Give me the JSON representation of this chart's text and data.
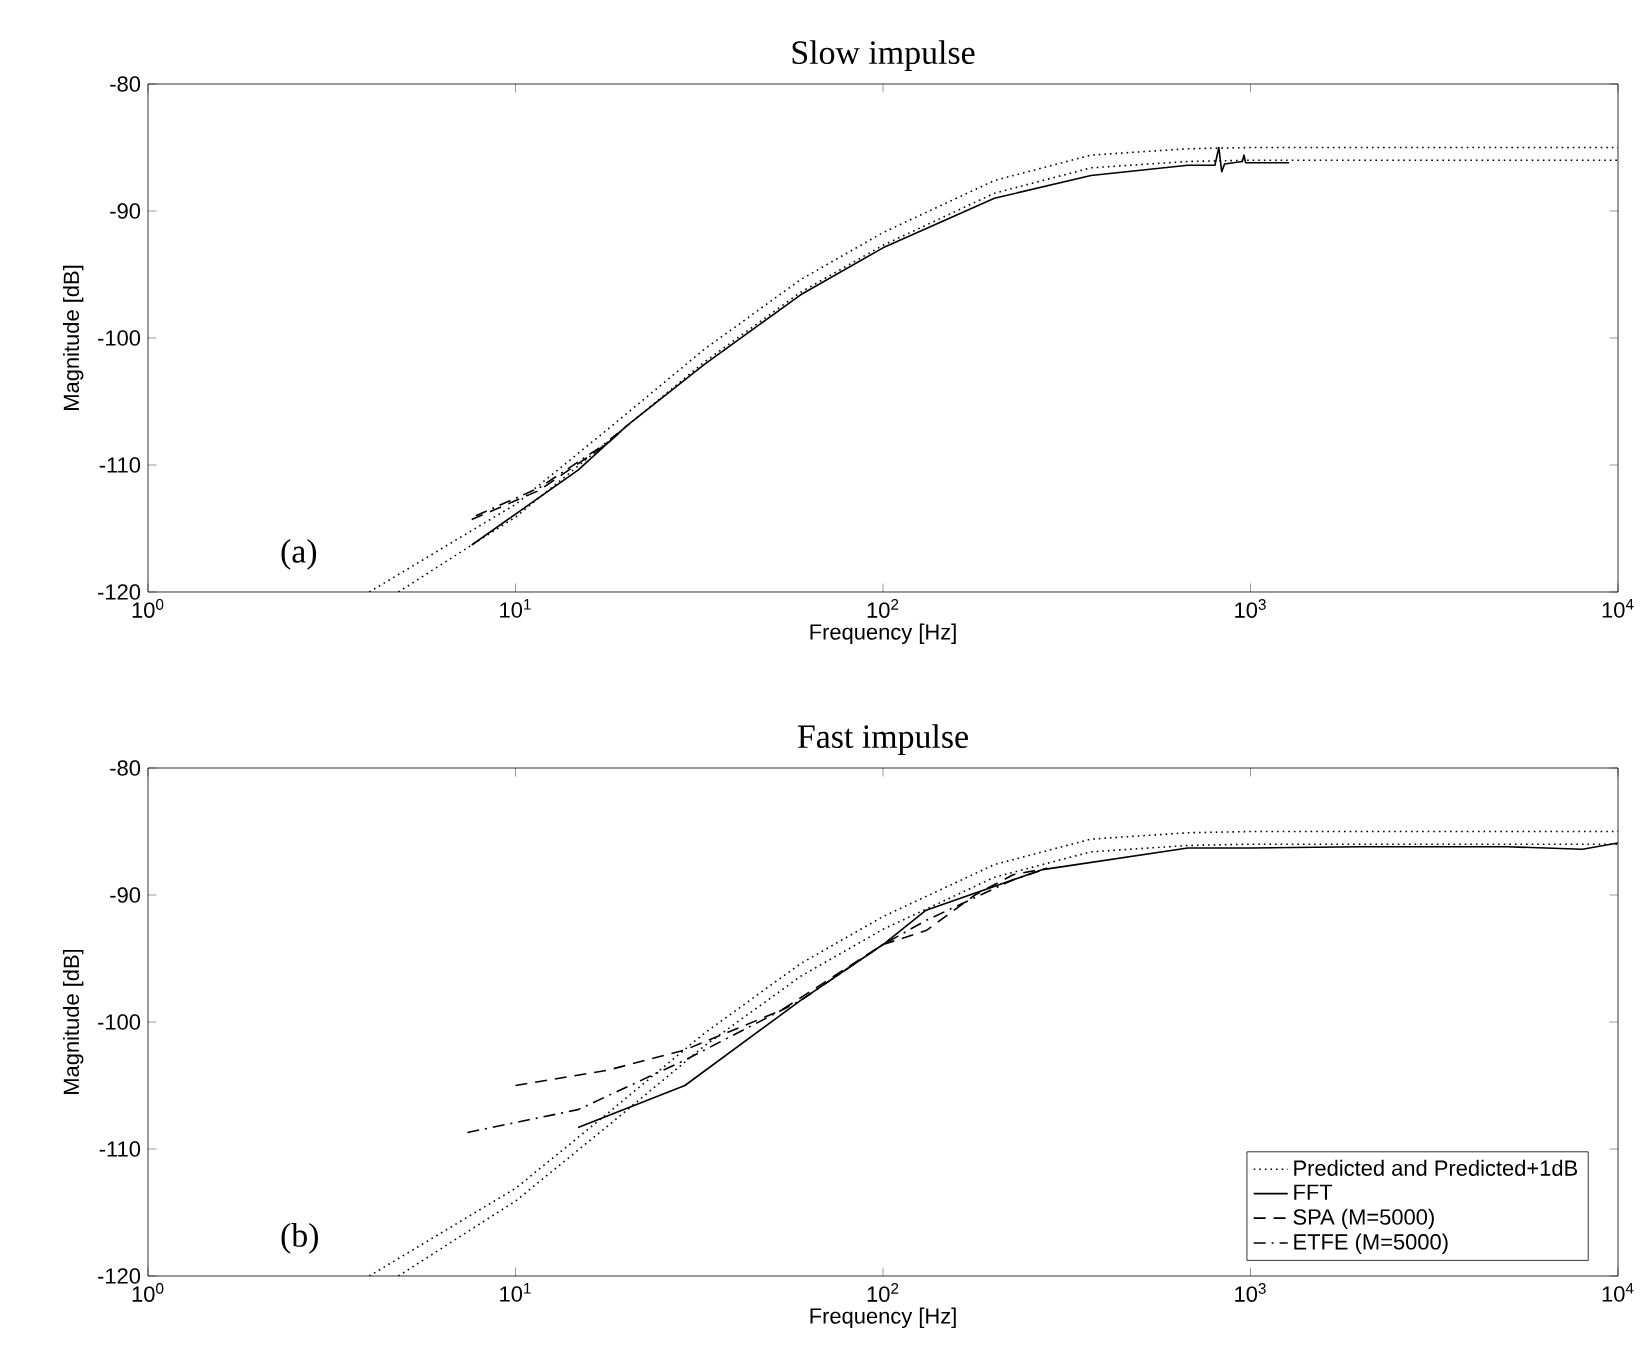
{
  "chart_data": [
    {
      "type": "line",
      "title": "Slow impulse",
      "xlabel": "Frequency [Hz]",
      "ylabel": "Magnitude [dB]",
      "annotations": [
        "(a)"
      ],
      "log": "x",
      "legend": false,
      "xlim": [
        1,
        10000
      ],
      "ylim": [
        -120,
        -80
      ],
      "xticks": [
        {
          "value": 1,
          "label": "10$^{0}$"
        },
        {
          "value": 10,
          "label": "10$^{1}$"
        },
        {
          "value": 100,
          "label": "10$^{2}$"
        },
        {
          "value": 1000,
          "label": "10$^{3}$"
        },
        {
          "value": 10000,
          "label": "10$^{4}$"
        }
      ],
      "yticks": [
        -120,
        -110,
        -100,
        -90,
        -80
      ],
      "series": [
        {
          "color": "#000000",
          "line_style": "dotted",
          "x": [
            4.0,
            10,
            17.8,
            32.6,
            59.7,
            100,
            201,
            368,
            675,
            1000,
            10000
          ],
          "values": [
            -120,
            -113.1,
            -107.2,
            -100.9,
            -95.4,
            -91.7,
            -87.6,
            -85.6,
            -85.1,
            -85.0,
            -85.0
          ]
        },
        {
          "color": "#000000",
          "line_style": "dotted",
          "x": [
            4.8,
            10,
            17.8,
            32.6,
            59.7,
            100,
            201,
            368,
            675,
            1000,
            10000
          ],
          "values": [
            -120,
            -114.1,
            -108.2,
            -101.9,
            -96.4,
            -92.7,
            -88.6,
            -86.6,
            -86.1,
            -86.0,
            -86.0
          ]
        },
        {
          "color": "#000000",
          "line_style": "solid",
          "x": [
            7.6,
            14.8,
            20.1,
            32.6,
            59.7,
            100,
            201,
            368,
            675,
            800,
            820,
            835,
            850,
            950,
            960,
            970,
            1274
          ],
          "values": [
            -116.3,
            -110.4,
            -106.9,
            -102.1,
            -96.6,
            -92.9,
            -89.0,
            -87.2,
            -86.4,
            -86.4,
            -85.0,
            -86.9,
            -86.3,
            -86.1,
            -85.6,
            -86.2,
            -86.2
          ]
        },
        {
          "color": "#000000",
          "line_style": "dashed",
          "x": [
            7.6,
            11.6,
            17.8,
            20.1
          ],
          "values": [
            -114.3,
            -112.0,
            -108.3,
            -106.9
          ]
        },
        {
          "color": "#000000",
          "line_style": "dashdot",
          "x": [
            7.8,
            11.6,
            17.0,
            19.0
          ],
          "values": [
            -114.0,
            -111.8,
            -108.6,
            -107.5
          ]
        }
      ]
    },
    {
      "type": "line",
      "title": "Fast impulse",
      "xlabel": "Frequency [Hz]",
      "ylabel": "Magnitude [dB]",
      "annotations": [
        "(b)"
      ],
      "log": "x",
      "legend": "bottom right",
      "xlim": [
        1,
        10000
      ],
      "ylim": [
        -120,
        -80
      ],
      "xticks": [
        {
          "value": 1,
          "label": "10$^{0}$"
        },
        {
          "value": 10,
          "label": "10$^{1}$"
        },
        {
          "value": 100,
          "label": "10$^{2}$"
        },
        {
          "value": 1000,
          "label": "10$^{3}$"
        },
        {
          "value": 10000,
          "label": "10$^{4}$"
        }
      ],
      "yticks": [
        -120,
        -110,
        -100,
        -90,
        -80
      ],
      "series": [
        {
          "name": "Predicted and Predicted+1dB",
          "color": "#000000",
          "line_style": "dotted",
          "x": [
            4.0,
            10,
            17.8,
            32.6,
            59.7,
            100,
            201,
            368,
            675,
            1000,
            10000
          ],
          "values": [
            -120,
            -113.1,
            -107.2,
            -100.9,
            -95.4,
            -91.7,
            -87.6,
            -85.6,
            -85.1,
            -85.0,
            -85.0
          ]
        },
        {
          "color": "#000000",
          "line_style": "dotted",
          "x": [
            4.8,
            10,
            17.8,
            32.6,
            59.7,
            100,
            201,
            368,
            675,
            1000,
            10000
          ],
          "values": [
            -120,
            -114.1,
            -108.2,
            -101.9,
            -96.4,
            -92.7,
            -88.6,
            -86.6,
            -86.1,
            -86.0,
            -86.0
          ]
        },
        {
          "name": "FFT",
          "color": "#000000",
          "line_style": "solid",
          "x": [
            14.8,
            28.9,
            59.7,
            100,
            131,
            272,
            675,
            1000,
            2000,
            5000,
            8000,
            10000
          ],
          "values": [
            -108.3,
            -105.0,
            -98.3,
            -93.9,
            -91.2,
            -88.0,
            -86.3,
            -86.3,
            -86.2,
            -86.2,
            -86.4,
            -85.9
          ]
        },
        {
          "name": "SPA (M=5000)",
          "color": "#000000",
          "line_style": "dashed",
          "x": [
            10,
            17.8,
            28.9,
            52.7,
            100,
            131,
            178,
            226,
            280
          ],
          "values": [
            -105.0,
            -103.8,
            -102.2,
            -99.1,
            -93.9,
            -92.8,
            -90.0,
            -88.4,
            -87.9
          ]
        },
        {
          "name": "ETFE (M=5000)",
          "color": "#000000",
          "line_style": "dashdot",
          "x": [
            7.4,
            14.8,
            28.9,
            59.7,
            100,
            131,
            226,
            280
          ],
          "values": [
            -108.7,
            -106.9,
            -103.0,
            -98.3,
            -93.9,
            -92.0,
            -88.8,
            -87.9
          ]
        }
      ]
    }
  ]
}
